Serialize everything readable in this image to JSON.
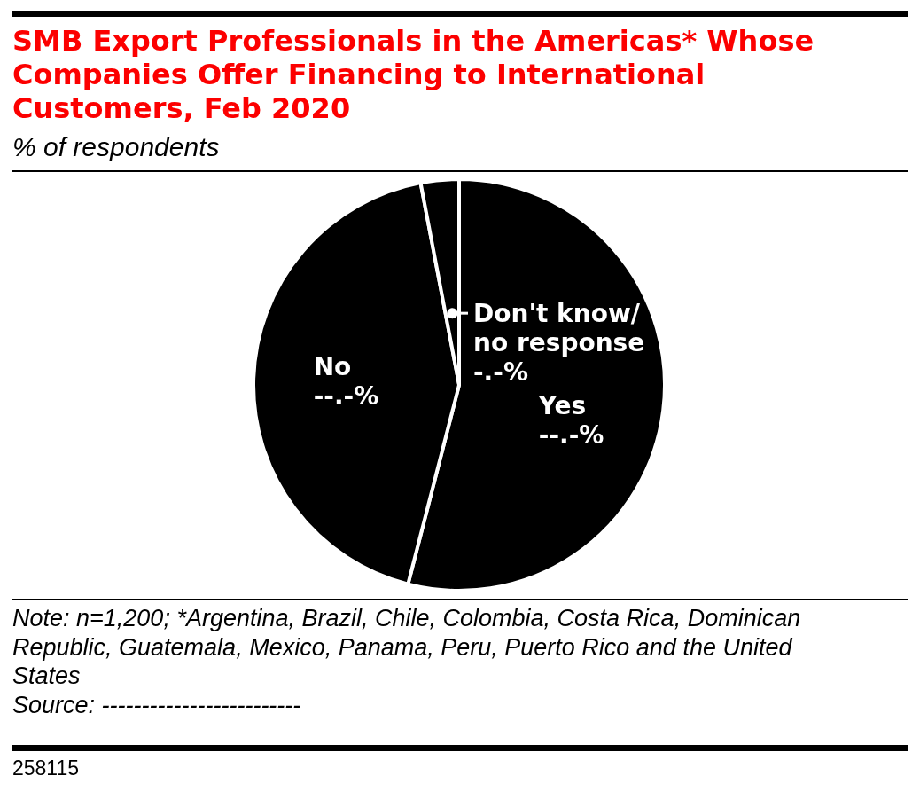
{
  "chart_data": {
    "type": "pie",
    "title": "SMB Export Professionals in the Americas* Whose Companies Offer Financing to International Customers, Feb 2020",
    "subtitle": "% of respondents",
    "categories": [
      "Yes",
      "No",
      "Don't know/no response"
    ],
    "values": [
      54,
      43,
      3
    ],
    "colors": [
      "#000000",
      "#000000",
      "#000000"
    ],
    "value_labels": [
      "--.-%",
      "--.-%",
      "-.-%"
    ],
    "annotations": [
      "Note: n=1,200; *Argentina, Brazil, Chile, Colombia, Costa Rica, Dominican Republic, Guatemala, Mexico, Panama, Peru, Puerto Rico and the United States",
      "Source: -------------------------",
      "258115"
    ]
  }
}
